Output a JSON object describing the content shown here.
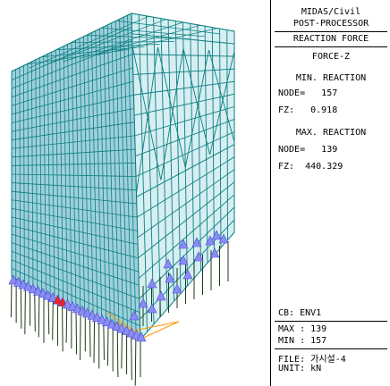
{
  "panel": {
    "program": "MIDAS/Civil",
    "module": "POST-PROCESSOR",
    "result_type": "REACTION FORCE",
    "component": "FORCE-Z",
    "min_reaction": {
      "title": "MIN. REACTION",
      "node_label": "NODE=",
      "node": "157",
      "value_label": "FZ:",
      "value": "0.918"
    },
    "max_reaction": {
      "title": "MAX. REACTION",
      "node_label": "NODE=",
      "node": "139",
      "value_label": "FZ:",
      "value": "440.329"
    },
    "load_case": "CB: ENV1",
    "max_line": "MAX : 139",
    "min_line": "MIN : 157",
    "file_line": "FILE: 가시설-4",
    "unit_line": "UNIT: kN"
  },
  "colors": {
    "frame_member": "#0b7f80",
    "frame_fill": "#9fd0dc",
    "roof_fill": "#a9c9dd",
    "reaction_arrow": "#8a8cf5",
    "max_reaction_arrow": "#ee2222",
    "support_line": "#1d3a14",
    "highlight_member": "#ff9900"
  },
  "icons": [
    "reaction-arrow-icon"
  ]
}
